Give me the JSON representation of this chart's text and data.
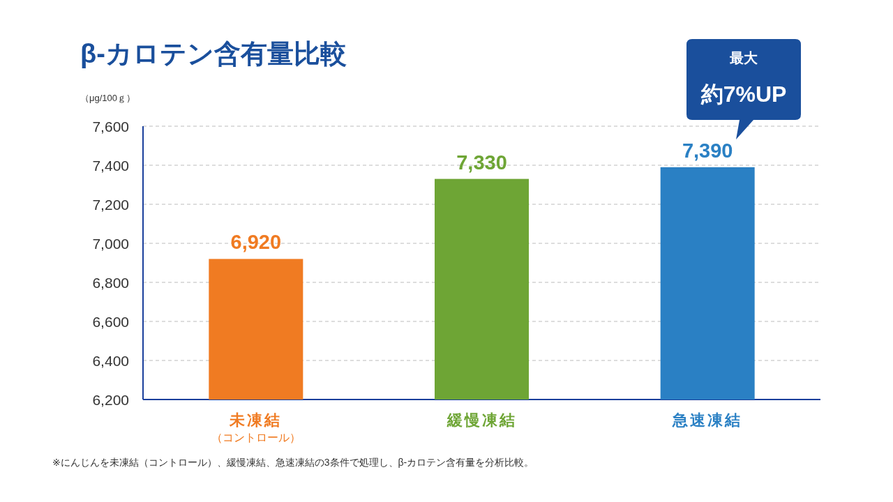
{
  "chart_data": {
    "type": "bar",
    "title": "β-カロテン含有量比較",
    "ylabel": "（μg/100ｇ）",
    "categories": [
      "未凍結（コントロール）",
      "緩慢凍結",
      "急速凍結"
    ],
    "values": [
      6920,
      7330,
      7390
    ],
    "value_labels": [
      "6,920",
      "7,330",
      "7,390"
    ],
    "colors": [
      "#f07b22",
      "#6ea535",
      "#2a80c4"
    ],
    "ylim": [
      6200,
      7600
    ],
    "yticks": [
      {
        "value": 6200,
        "label": "6,200"
      },
      {
        "value": 6400,
        "label": "6,400"
      },
      {
        "value": 6600,
        "label": "6,600"
      },
      {
        "value": 6800,
        "label": "6,800"
      },
      {
        "value": 7000,
        "label": "7,000"
      },
      {
        "value": 7200,
        "label": "7,200"
      },
      {
        "value": 7400,
        "label": "7,400"
      },
      {
        "value": 7600,
        "label": "7,600"
      }
    ],
    "grid": "y",
    "annotations": [
      "最大",
      "約7%UP",
      "※にんじんを未凍結（コントロール）、緩慢凍結、急速凍結の3条件で処理し、β-カロテン含有量を分析比較。"
    ]
  }
}
